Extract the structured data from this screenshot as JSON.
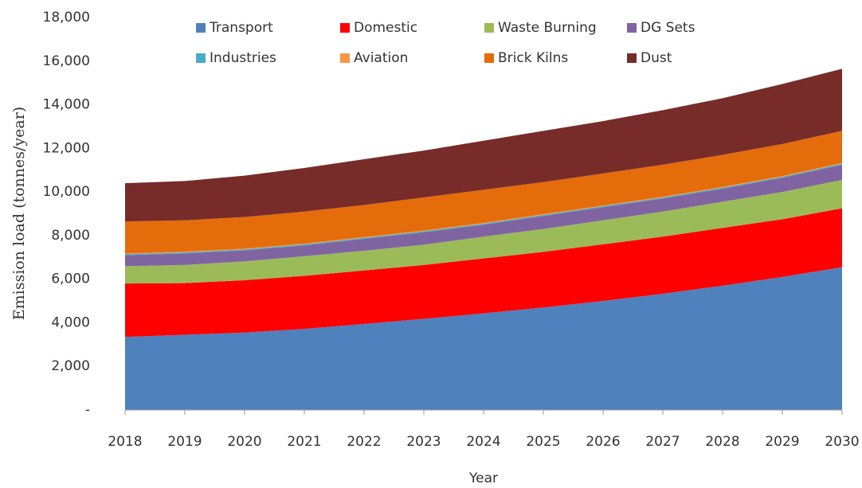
{
  "chart_data": {
    "type": "stacked_area",
    "xlabel": "Year",
    "ylabel": "Emission load (tonnes/year)",
    "categories": [
      "2018",
      "2019",
      "2020",
      "2021",
      "2022",
      "2023",
      "2024",
      "2025",
      "2026",
      "2027",
      "2028",
      "2029",
      "2030"
    ],
    "ylim": [
      0,
      18000
    ],
    "yticks": [
      {
        "value": 0,
        "label": "-"
      },
      {
        "value": 2000,
        "label": "2,000"
      },
      {
        "value": 4000,
        "label": "4,000"
      },
      {
        "value": 6000,
        "label": "6,000"
      },
      {
        "value": 8000,
        "label": "8,000"
      },
      {
        "value": 10000,
        "label": "10,000"
      },
      {
        "value": 12000,
        "label": "12,000"
      },
      {
        "value": 14000,
        "label": "14,000"
      },
      {
        "value": 16000,
        "label": "16,000"
      },
      {
        "value": 18000,
        "label": "18,000"
      }
    ],
    "legend": "top",
    "series": [
      {
        "name": "Transport",
        "color": "#4f81bd",
        "values": [
          3350,
          3450,
          3550,
          3720,
          3950,
          4180,
          4430,
          4700,
          5000,
          5330,
          5700,
          6100,
          6550
        ]
      },
      {
        "name": "Domestic",
        "color": "#ff0000",
        "values": [
          2450,
          2370,
          2400,
          2430,
          2450,
          2470,
          2520,
          2550,
          2600,
          2620,
          2650,
          2650,
          2700
        ]
      },
      {
        "name": "Waste Burning",
        "color": "#9bbb59",
        "values": [
          800,
          830,
          870,
          900,
          900,
          930,
          1000,
          1050,
          1100,
          1150,
          1200,
          1250,
          1300
        ]
      },
      {
        "name": "DG Sets",
        "color": "#8064a2",
        "values": [
          500,
          530,
          500,
          500,
          550,
          570,
          550,
          600,
          600,
          600,
          600,
          650,
          700
        ]
      },
      {
        "name": "Industries",
        "color": "#4bacc6",
        "values": [
          50,
          50,
          50,
          50,
          50,
          50,
          50,
          50,
          50,
          50,
          50,
          50,
          50
        ]
      },
      {
        "name": "Aviation",
        "color": "#f79646",
        "values": [
          30,
          30,
          30,
          30,
          30,
          30,
          30,
          30,
          30,
          30,
          30,
          30,
          30
        ]
      },
      {
        "name": "Brick Kilns",
        "color": "#e46c0a",
        "values": [
          1470,
          1440,
          1450,
          1470,
          1470,
          1520,
          1520,
          1470,
          1470,
          1470,
          1470,
          1470,
          1470
        ]
      },
      {
        "name": "Dust",
        "color": "#772c2a",
        "values": [
          1750,
          1800,
          1900,
          2000,
          2100,
          2150,
          2250,
          2350,
          2400,
          2500,
          2600,
          2750,
          2850
        ]
      }
    ]
  }
}
